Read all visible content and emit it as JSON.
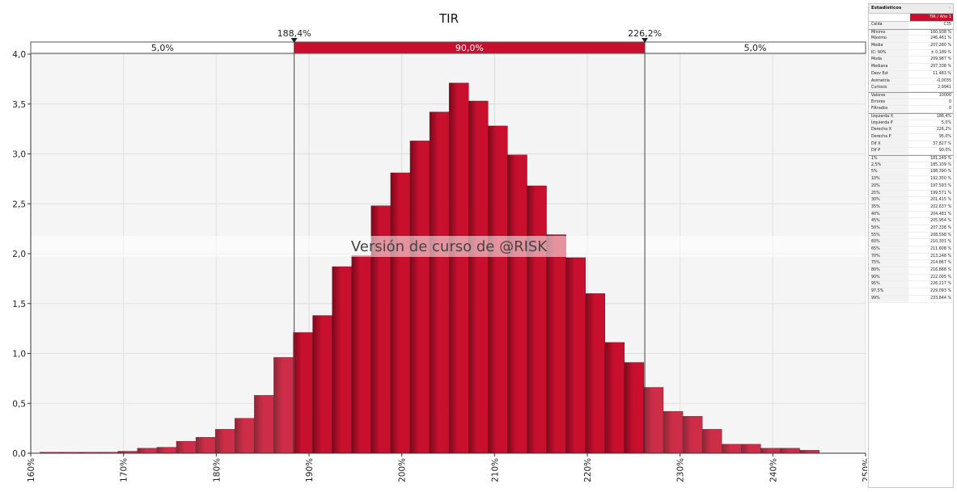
{
  "chart_data": {
    "type": "bar",
    "title": "TIR",
    "xlabel": "",
    "ylabel": "",
    "xlim": [
      160,
      250
    ],
    "ylim": [
      0,
      4
    ],
    "x_ticks": [
      "160%",
      "170%",
      "180%",
      "190%",
      "200%",
      "210%",
      "220%",
      "230%",
      "240%",
      "250%"
    ],
    "y_ticks": [
      "0,0",
      "0,5",
      "1,0",
      "1,5",
      "2,0",
      "2,5",
      "3,0",
      "3,5",
      "4,0"
    ],
    "grid": true,
    "bin_start": 161.0,
    "bin_width": 2.1,
    "values": [
      0.01,
      0.01,
      0.01,
      0.01,
      0.02,
      0.05,
      0.06,
      0.12,
      0.16,
      0.24,
      0.35,
      0.58,
      0.96,
      1.21,
      1.38,
      1.87,
      1.98,
      2.48,
      2.81,
      3.13,
      3.42,
      3.71,
      3.53,
      3.28,
      2.99,
      2.68,
      2.19,
      1.96,
      1.6,
      1.11,
      0.91,
      0.66,
      0.42,
      0.37,
      0.24,
      0.09,
      0.09,
      0.05,
      0.05,
      0.03
    ],
    "delimiters": {
      "left_x": 188.4,
      "right_x": 226.2,
      "left_label": "188,4%",
      "right_label": "226,2%",
      "left_pct": "5,0%",
      "middle_pct": "90,0%",
      "right_pct": "5,0%"
    },
    "watermark": "Versión de curso de @RISK",
    "colors": {
      "bar": "#c8102e",
      "bar_shade": "#7a0a1c",
      "delimiter_band": "#c8102e"
    }
  },
  "stats": {
    "title": "Estadísticos",
    "column": "TIR / Año 1",
    "rows": [
      {
        "label": "Celda",
        "value": "C35"
      },
      {
        "label": "Mínimo",
        "value": "160,938 %",
        "group": true
      },
      {
        "label": "Máximo",
        "value": "246,461 %"
      },
      {
        "label": "Media",
        "value": "207,280 %"
      },
      {
        "label": "IC: 90%",
        "value": "± 0,189 %"
      },
      {
        "label": "Moda",
        "value": "209,987 %"
      },
      {
        "label": "Mediana",
        "value": "207,338 %"
      },
      {
        "label": "Desv Est",
        "value": "11,483 %"
      },
      {
        "label": "Asimetría",
        "value": "-0,0035"
      },
      {
        "label": "Curtosis",
        "value": "2,9941"
      },
      {
        "label": "Valores",
        "value": "10000",
        "group": true
      },
      {
        "label": "Errores",
        "value": "0"
      },
      {
        "label": "Filtrados",
        "value": "0"
      },
      {
        "label": "Izquierda X",
        "value": "188,4%",
        "group": true
      },
      {
        "label": "Izquierda P",
        "value": "5,0%"
      },
      {
        "label": "Derecha X",
        "value": "226,2%"
      },
      {
        "label": "Derecha P",
        "value": "95,0%"
      },
      {
        "label": "Dif X",
        "value": "37,827 %"
      },
      {
        "label": "Dif P",
        "value": "90,0%"
      },
      {
        "label": "1%",
        "value": "181,249 %",
        "group": true
      },
      {
        "label": "2,5%",
        "value": "185,109 %"
      },
      {
        "label": "5%",
        "value": "188,390 %"
      },
      {
        "label": "10%",
        "value": "192,350 %"
      },
      {
        "label": "20%",
        "value": "197,593 %"
      },
      {
        "label": "25%",
        "value": "199,571 %"
      },
      {
        "label": "30%",
        "value": "201,415 %"
      },
      {
        "label": "35%",
        "value": "202,637 %"
      },
      {
        "label": "40%",
        "value": "204,481 %"
      },
      {
        "label": "45%",
        "value": "205,954 %"
      },
      {
        "label": "50%",
        "value": "207,338 %"
      },
      {
        "label": "55%",
        "value": "208,598 %"
      },
      {
        "label": "60%",
        "value": "210,301 %"
      },
      {
        "label": "65%",
        "value": "211,608 %"
      },
      {
        "label": "70%",
        "value": "213,248 %"
      },
      {
        "label": "75%",
        "value": "214,867 %"
      },
      {
        "label": "80%",
        "value": "216,868 %"
      },
      {
        "label": "90%",
        "value": "222,005 %"
      },
      {
        "label": "95%",
        "value": "226,217 %"
      },
      {
        "label": "97,5%",
        "value": "229,093 %"
      },
      {
        "label": "99%",
        "value": "233,844 %"
      }
    ]
  }
}
